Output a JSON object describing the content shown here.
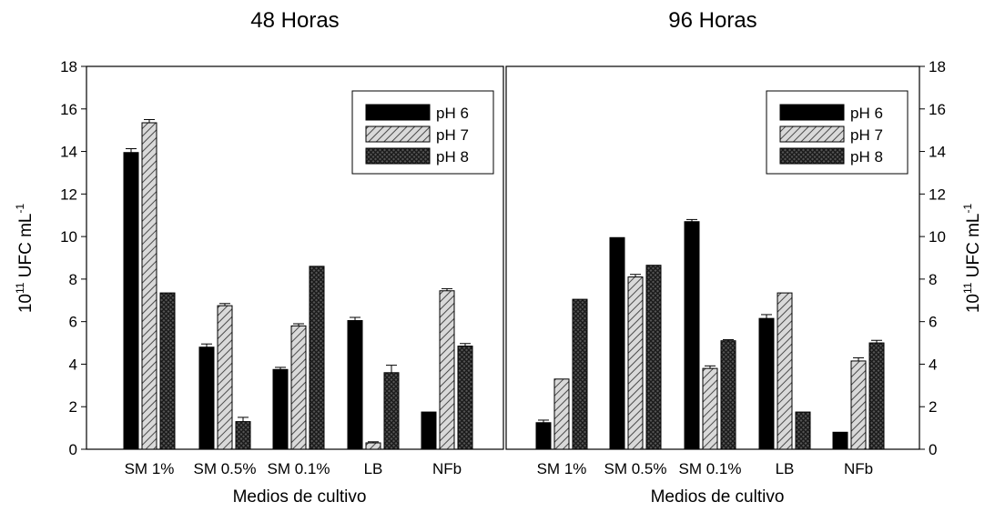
{
  "chart_data": [
    {
      "type": "bar",
      "title": "48 Horas",
      "xlabel": "Medios de cultivo",
      "ylabel": "UFC mL",
      "ylabel_prefix": "10",
      "ylabel_exp": "11",
      "ylabel_sup": "-1",
      "ylim": [
        0,
        18
      ],
      "yticks": [
        "0",
        "2",
        "4",
        "6",
        "8",
        "10",
        "12",
        "14",
        "16",
        "18"
      ],
      "categories": [
        "SM 1%",
        "SM 0.5%",
        "SM 0.1%",
        "LB",
        "NFb"
      ],
      "legend_position": "top-right",
      "series": [
        {
          "name": "pH 6",
          "pattern": "solid",
          "color": "#000000",
          "values": [
            13.95,
            4.8,
            3.75,
            6.05,
            1.75
          ],
          "errors": [
            0.18,
            0.15,
            0.1,
            0.15,
            0.0
          ]
        },
        {
          "name": "pH 7",
          "pattern": "hatch",
          "color": "#b0b0b0",
          "values": [
            15.35,
            6.75,
            5.8,
            0.3,
            7.45
          ],
          "errors": [
            0.15,
            0.1,
            0.1,
            0.05,
            0.1
          ]
        },
        {
          "name": "pH 8",
          "pattern": "cross",
          "color": "#3a3a3a",
          "values": [
            7.35,
            1.3,
            8.6,
            3.6,
            4.85
          ],
          "errors": [
            0.0,
            0.2,
            0.0,
            0.35,
            0.12
          ]
        }
      ]
    },
    {
      "type": "bar",
      "title": "96 Horas",
      "xlabel": "Medios de cultivo",
      "ylabel": "UFC mL",
      "ylabel_prefix": "10",
      "ylabel_exp": "11",
      "ylabel_sup": "-1",
      "ylim": [
        0,
        18
      ],
      "yticks": [
        "0",
        "2",
        "4",
        "6",
        "8",
        "10",
        "12",
        "14",
        "16",
        "18"
      ],
      "categories": [
        "SM 1%",
        "SM 0.5%",
        "SM 0.1%",
        "LB",
        "NFb"
      ],
      "legend_position": "top-right",
      "series": [
        {
          "name": "pH 6",
          "pattern": "solid",
          "color": "#000000",
          "values": [
            1.25,
            9.95,
            10.7,
            6.15,
            0.8
          ],
          "errors": [
            0.12,
            0.0,
            0.1,
            0.18,
            0.0
          ]
        },
        {
          "name": "pH 7",
          "pattern": "hatch",
          "color": "#b0b0b0",
          "values": [
            3.3,
            8.1,
            3.8,
            7.35,
            4.15
          ],
          "errors": [
            0.0,
            0.12,
            0.12,
            0.0,
            0.15
          ]
        },
        {
          "name": "pH 8",
          "pattern": "cross",
          "color": "#3a3a3a",
          "values": [
            7.05,
            8.65,
            5.1,
            1.75,
            5.0
          ],
          "errors": [
            0.0,
            0.0,
            0.05,
            0.0,
            0.12
          ]
        }
      ]
    }
  ]
}
